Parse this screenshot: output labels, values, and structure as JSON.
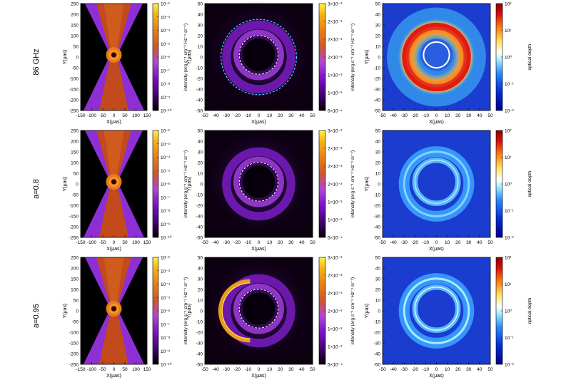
{
  "row_labels": [
    "86 GHz",
    "a=0.8",
    "a=0.95"
  ],
  "axes": {
    "x_label": "X(μas)",
    "y_label": "Y(μas)",
    "col1_xticks": [
      "-150",
      "-100",
      "-50",
      "0",
      "50",
      "100",
      "150"
    ],
    "col1_yticks": [
      "250",
      "200",
      "150",
      "100",
      "50",
      "0",
      "-50",
      "-100",
      "-150",
      "-200",
      "-250"
    ],
    "zoom_xticks": [
      "-50",
      "-40",
      "-30",
      "-20",
      "-10",
      "0",
      "10",
      "20",
      "30",
      "40",
      "50"
    ],
    "zoom_yticks": [
      "50",
      "40",
      "30",
      "20",
      "10",
      "0",
      "-10",
      "-20",
      "-30",
      "-40",
      "-50"
    ]
  },
  "colorbars": {
    "col1_label": "intensity (erg s⁻¹ cm⁻² Hz⁻¹ sr⁻¹)",
    "col1_ticks": [
      "10⁻²",
      "10⁻³",
      "10⁻⁴",
      "10⁻⁵",
      "10⁻⁶",
      "10⁻⁷",
      "10⁻⁸",
      "10⁻⁹",
      "10⁻¹⁰"
    ],
    "col2_label": "intensity (erg s⁻¹ cm⁻² Hz⁻¹ sr⁻¹)",
    "col2_ticks": [
      "3×10⁻³",
      "2×10⁻³",
      "2×10⁻³",
      "2×10⁻³",
      "1×10⁻³",
      "1×10⁻³",
      "5×10⁻⁴"
    ],
    "col3_label": "optical depth",
    "col3_ticks": [
      "10²",
      "10¹",
      "10⁰",
      "10⁻¹",
      "10⁻²"
    ]
  },
  "colors": {
    "intensity_map": [
      "#000000",
      "#3a0060",
      "#7a12c8",
      "#b046d6",
      "#d2562a",
      "#e68016",
      "#f6b412",
      "#fff04a"
    ],
    "optical_depth_map": [
      "#00008a",
      "#0030d8",
      "#2a8cff",
      "#aaf2ff",
      "#ffffff",
      "#ffe060",
      "#ff7a10",
      "#d81010",
      "#8a0000"
    ],
    "ring_dash": "#ffffff",
    "ring_dash_cyan": "#40d8ff"
  },
  "chart_data": {
    "type": "heatmap",
    "panel_grid": "3 rows × 3 columns",
    "row_titles": [
      "86 GHz",
      "a=0.8",
      "a=0.95"
    ],
    "columns": [
      {
        "content": "intensity image (jet scale)",
        "xlim": [
          -150,
          150
        ],
        "ylim": [
          -250,
          250
        ],
        "colorbar_range": [
          "10⁻¹⁰",
          "10⁻²"
        ],
        "scale": "log"
      },
      {
        "content": "intensity image (zoom)",
        "xlim": [
          -50,
          50
        ],
        "ylim": [
          -50,
          50
        ],
        "colorbar_range": [
          "5×10⁻⁴",
          "3×10⁻³"
        ],
        "scale": "linear"
      },
      {
        "content": "optical depth (zoom)",
        "xlim": [
          -50,
          50
        ],
        "ylim": [
          -50,
          50
        ],
        "colorbar_range": [
          "10⁻²",
          "10²"
        ],
        "scale": "log"
      }
    ]
  }
}
